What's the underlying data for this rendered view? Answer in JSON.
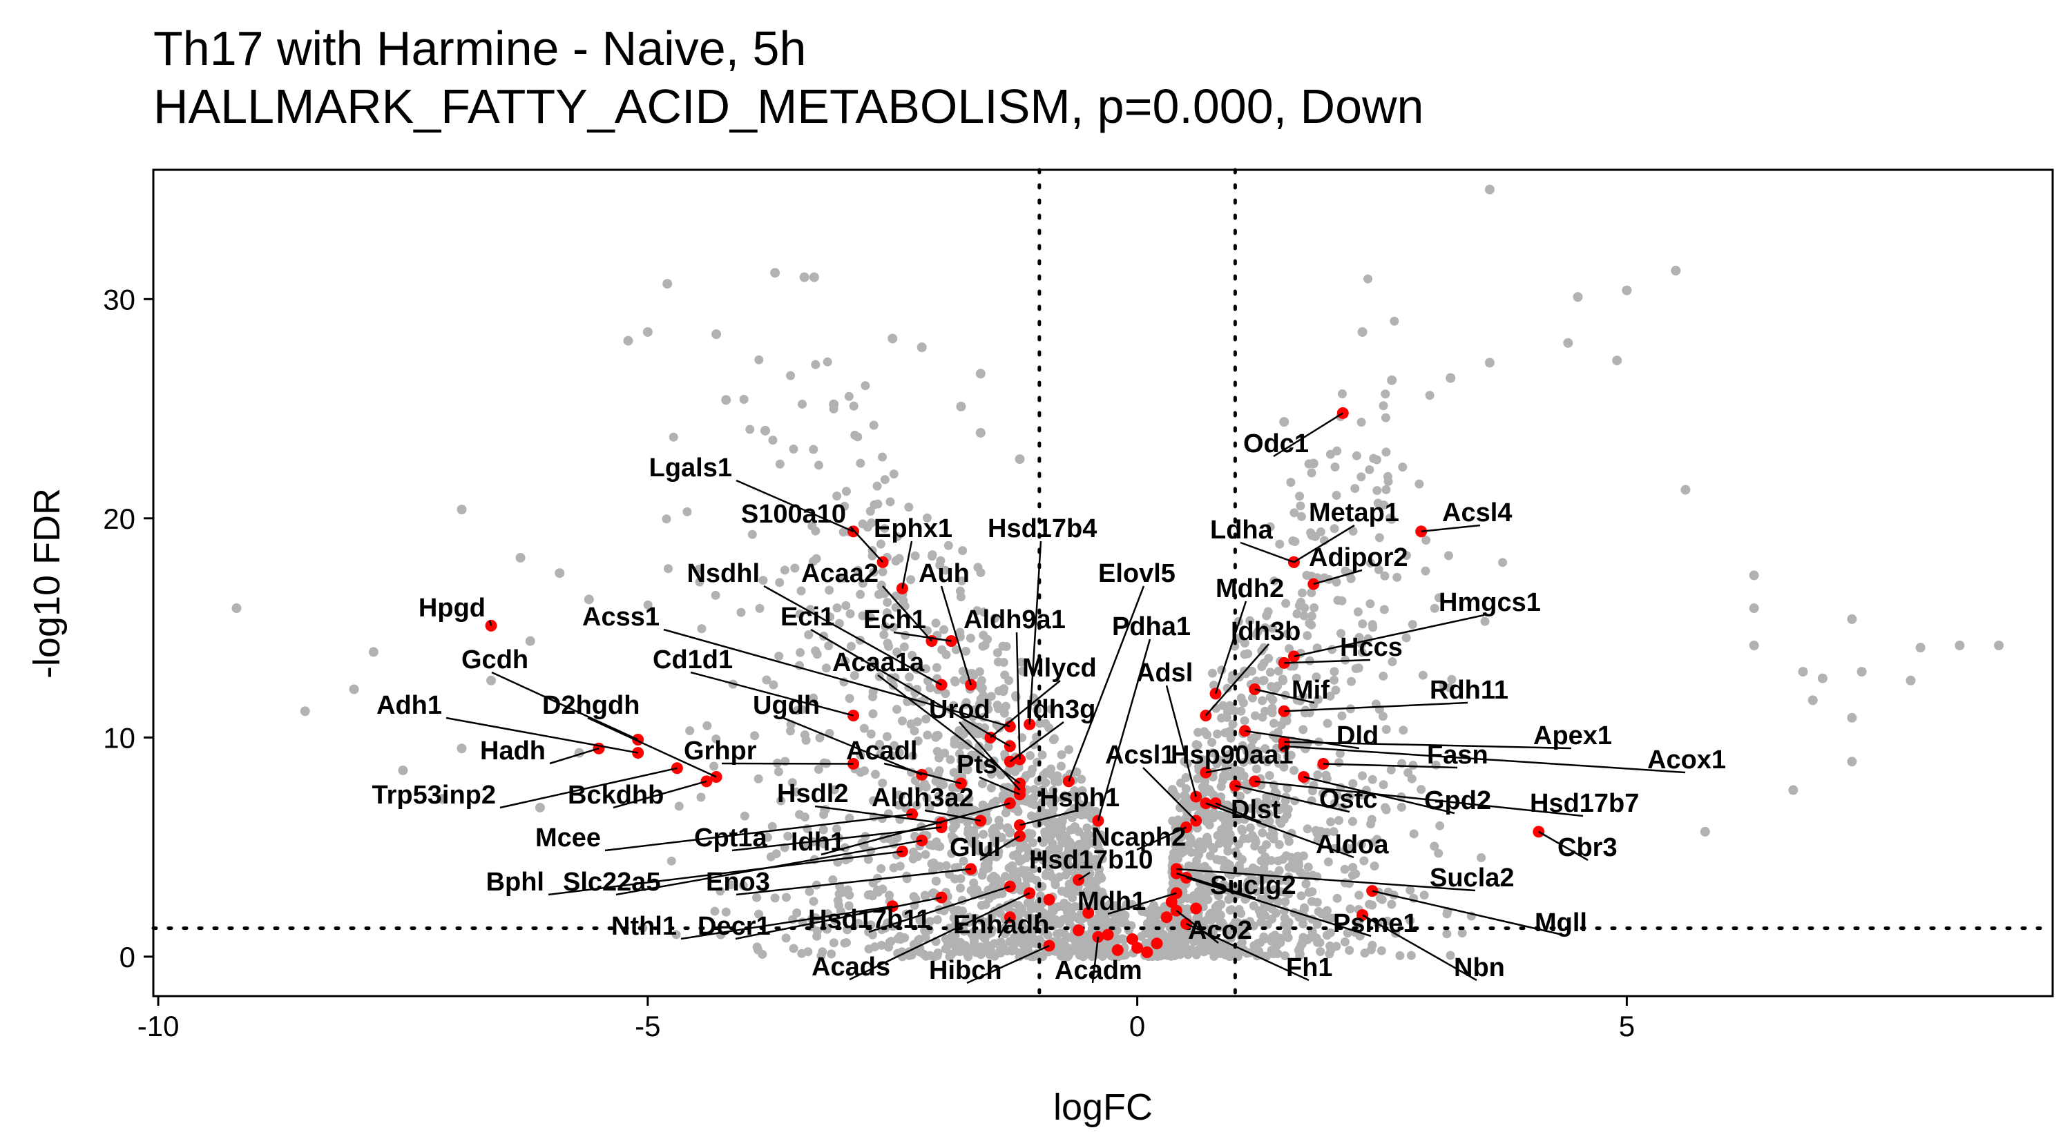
{
  "chart_data": {
    "type": "scatter",
    "title_lines": [
      "Th17 with Harmine - Naive, 5h",
      "HALLMARK_FATTY_ACID_METABOLISM, p=0.000, Down"
    ],
    "xlabel": "logFC",
    "ylabel": "-log10 FDR",
    "xlim": [
      -10.05,
      9.35
    ],
    "ylim": [
      -1.8,
      35.9
    ],
    "xticks": [
      -10,
      -5,
      0,
      5
    ],
    "yticks": [
      0,
      10,
      20,
      30
    ],
    "thresholds": {
      "logFC": [
        -1,
        1
      ],
      "neg_log10_fdr": 1.3
    },
    "grid": false,
    "colors": {
      "background_genes": "#b2b2b2",
      "pathway_genes": "#ff0000",
      "axis": "#000000"
    },
    "background_points": [
      [
        -9.2,
        15.9
      ],
      [
        -8.5,
        11.2
      ],
      [
        -7.8,
        13.9
      ],
      [
        -7.1,
        7.2
      ],
      [
        -6.9,
        20.4
      ],
      [
        -6.3,
        18.2
      ],
      [
        -6.9,
        9.5
      ],
      [
        -5.9,
        17.5
      ],
      [
        -5.6,
        16.3
      ],
      [
        -6.6,
        12.6
      ],
      [
        -6.2,
        14.4
      ],
      [
        -5.2,
        28.1
      ],
      [
        -5.0,
        28.5
      ],
      [
        -4.8,
        30.7
      ],
      [
        -4.3,
        28.4
      ],
      [
        -4.2,
        25.4
      ],
      [
        -3.8,
        24.0
      ],
      [
        -3.7,
        31.2
      ],
      [
        -3.4,
        31.0
      ],
      [
        -3.3,
        31.0
      ],
      [
        -3.1,
        25.2
      ],
      [
        -2.5,
        28.2
      ],
      [
        -2.2,
        27.8
      ],
      [
        -1.6,
        26.6
      ],
      [
        -1.6,
        23.9
      ],
      [
        -1.8,
        25.1
      ],
      [
        -1.2,
        22.7
      ],
      [
        1.5,
        24.4
      ],
      [
        1.8,
        22.5
      ],
      [
        2.3,
        28.5
      ],
      [
        2.6,
        26.3
      ],
      [
        3.2,
        26.4
      ],
      [
        3.6,
        27.1
      ],
      [
        3.6,
        35.0
      ],
      [
        4.4,
        28.0
      ],
      [
        4.5,
        30.1
      ],
      [
        4.9,
        27.2
      ],
      [
        5.0,
        30.4
      ],
      [
        5.5,
        31.3
      ],
      [
        5.6,
        21.3
      ],
      [
        6.3,
        17.4
      ],
      [
        6.3,
        15.9
      ],
      [
        6.3,
        14.2
      ],
      [
        6.9,
        11.7
      ],
      [
        6.8,
        13.0
      ],
      [
        7.0,
        12.7
      ],
      [
        7.3,
        15.4
      ],
      [
        7.3,
        8.9
      ],
      [
        7.4,
        13.0
      ],
      [
        7.9,
        12.6
      ],
      [
        8.0,
        14.1
      ],
      [
        7.3,
        10.9
      ],
      [
        6.7,
        7.6
      ],
      [
        5.8,
        5.7
      ],
      [
        8.4,
        14.2
      ],
      [
        8.8,
        14.2
      ],
      [
        -8.0,
        12.2
      ],
      [
        -7.5,
        8.5
      ],
      [
        -6.1,
        6.8
      ],
      [
        -5.7,
        9.3
      ]
    ],
    "pathway_points": [
      {
        "gene": "Lgals1",
        "x": -2.9,
        "y": 19.4
      },
      {
        "gene": "S100a10",
        "x": -2.6,
        "y": 18.0
      },
      {
        "gene": "Ephx1",
        "x": -2.4,
        "y": 16.8
      },
      {
        "gene": "Hsd17b4",
        "x": -1.1,
        "y": 10.6
      },
      {
        "gene": "Nsdhl",
        "x": -2.0,
        "y": 12.4
      },
      {
        "gene": "Acaa2",
        "x": -2.1,
        "y": 14.4
      },
      {
        "gene": "Auh",
        "x": -1.7,
        "y": 12.4
      },
      {
        "gene": "Elovl5",
        "x": -0.7,
        "y": 8.0
      },
      {
        "gene": "Hpgd",
        "x": -6.6,
        "y": 15.1
      },
      {
        "gene": "Acss1",
        "x": -1.3,
        "y": 10.5
      },
      {
        "gene": "Eci1",
        "x": -1.3,
        "y": 9.6
      },
      {
        "gene": "Ech1",
        "x": -1.9,
        "y": 14.4
      },
      {
        "gene": "Aldh9a1",
        "x": -1.2,
        "y": 9.0
      },
      {
        "gene": "Gcdh",
        "x": -5.1,
        "y": 9.9
      },
      {
        "gene": "Cd1d1",
        "x": -2.9,
        "y": 11.0
      },
      {
        "gene": "Acaa1a",
        "x": -1.2,
        "y": 7.9
      },
      {
        "gene": "Mlycd",
        "x": -1.5,
        "y": 10.0
      },
      {
        "gene": "Pdha1",
        "x": -0.4,
        "y": 6.2
      },
      {
        "gene": "Adh1",
        "x": -5.1,
        "y": 9.3
      },
      {
        "gene": "D2hgdh",
        "x": -4.3,
        "y": 8.2
      },
      {
        "gene": "Ugdh",
        "x": -2.2,
        "y": 8.3
      },
      {
        "gene": "Urod",
        "x": -1.2,
        "y": 7.6
      },
      {
        "gene": "Idh3g",
        "x": -1.3,
        "y": 8.9
      },
      {
        "gene": "Hadh",
        "x": -5.5,
        "y": 9.5
      },
      {
        "gene": "Grhpr",
        "x": -2.9,
        "y": 8.8
      },
      {
        "gene": "Acadl",
        "x": -1.8,
        "y": 7.9
      },
      {
        "gene": "Pts",
        "x": -1.2,
        "y": 7.4
      },
      {
        "gene": "Trp53inp2",
        "x": -4.7,
        "y": 8.6
      },
      {
        "gene": "Bckdhb",
        "x": -4.4,
        "y": 8.0
      },
      {
        "gene": "Hsdl2",
        "x": -2.0,
        "y": 6.1
      },
      {
        "gene": "Aldh3a2",
        "x": -1.6,
        "y": 6.2
      },
      {
        "gene": "Hsph1",
        "x": -1.2,
        "y": 6.0
      },
      {
        "gene": "Mcee",
        "x": -2.3,
        "y": 6.5
      },
      {
        "gene": "Cpt1a",
        "x": -2.0,
        "y": 5.9
      },
      {
        "gene": "Idh1",
        "x": -1.3,
        "y": 7.0
      },
      {
        "gene": "Glul",
        "x": -1.2,
        "y": 5.5
      },
      {
        "gene": "Bphl",
        "x": -2.4,
        "y": 4.8
      },
      {
        "gene": "Slc22a5",
        "x": -2.2,
        "y": 5.3
      },
      {
        "gene": "Eno3",
        "x": -1.7,
        "y": 4.0
      },
      {
        "gene": "Hsd17b10",
        "x": -0.6,
        "y": 3.5
      },
      {
        "gene": "Nthl1",
        "x": -2.5,
        "y": 2.3
      },
      {
        "gene": "Decr1",
        "x": -2.0,
        "y": 2.7
      },
      {
        "gene": "Hsd17b11",
        "x": -1.3,
        "y": 3.2
      },
      {
        "gene": "Ehhadh",
        "x": -1.3,
        "y": 1.8
      },
      {
        "gene": "Acads",
        "x": -1.1,
        "y": 2.9
      },
      {
        "gene": "Hibch",
        "x": -0.9,
        "y": 0.5
      },
      {
        "gene": "Acadm",
        "x": -0.4,
        "y": 0.9
      },
      {
        "gene": "Odc1",
        "x": 2.1,
        "y": 24.8
      },
      {
        "gene": "Metap1",
        "x": 1.6,
        "y": 18.0
      },
      {
        "gene": "Acsl4",
        "x": 2.9,
        "y": 19.4
      },
      {
        "gene": "Ldha",
        "x": 1.6,
        "y": 18.0
      },
      {
        "gene": "Adipor2",
        "x": 1.8,
        "y": 17.0
      },
      {
        "gene": "Mdh2",
        "x": 0.8,
        "y": 12.0
      },
      {
        "gene": "Hmgcs1",
        "x": 1.6,
        "y": 13.7
      },
      {
        "gene": "Idh3b",
        "x": 0.7,
        "y": 11.0
      },
      {
        "gene": "Hccs",
        "x": 1.5,
        "y": 13.4
      },
      {
        "gene": "Adsl",
        "x": 0.6,
        "y": 7.3
      },
      {
        "gene": "Mif",
        "x": 1.2,
        "y": 12.2
      },
      {
        "gene": "Rdh11",
        "x": 1.5,
        "y": 11.2
      },
      {
        "gene": "Dld",
        "x": 1.1,
        "y": 10.3
      },
      {
        "gene": "Apex1",
        "x": 1.5,
        "y": 9.8
      },
      {
        "gene": "Acsl1",
        "x": 0.6,
        "y": 6.2
      },
      {
        "gene": "Hsp90aa1",
        "x": 0.7,
        "y": 8.4
      },
      {
        "gene": "Fasn",
        "x": 1.9,
        "y": 8.8
      },
      {
        "gene": "Acox1",
        "x": 1.5,
        "y": 9.6
      },
      {
        "gene": "Dlst",
        "x": 0.8,
        "y": 7.0
      },
      {
        "gene": "Ostc",
        "x": 1.0,
        "y": 7.8
      },
      {
        "gene": "Gpd2",
        "x": 1.7,
        "y": 8.2
      },
      {
        "gene": "Hsd17b7",
        "x": 1.2,
        "y": 8.0
      },
      {
        "gene": "Ncaph2",
        "x": 0.5,
        "y": 5.9
      },
      {
        "gene": "Aldoa",
        "x": 0.7,
        "y": 7.0
      },
      {
        "gene": "Cbr3",
        "x": 4.1,
        "y": 5.7
      },
      {
        "gene": "Sucla2",
        "x": 0.4,
        "y": 4.0
      },
      {
        "gene": "Suclg2",
        "x": 0.4,
        "y": 3.8
      },
      {
        "gene": "Mgll",
        "x": 2.4,
        "y": 3.0
      },
      {
        "gene": "Mdh1",
        "x": 0.4,
        "y": 2.9
      },
      {
        "gene": "Psme1",
        "x": 0.5,
        "y": 3.6
      },
      {
        "gene": "Aco2",
        "x": 0.4,
        "y": 2.1
      },
      {
        "gene": "Fh1",
        "x": 0.5,
        "y": 1.5
      },
      {
        "gene": "Nbn",
        "x": 2.3,
        "y": 1.9
      }
    ]
  }
}
